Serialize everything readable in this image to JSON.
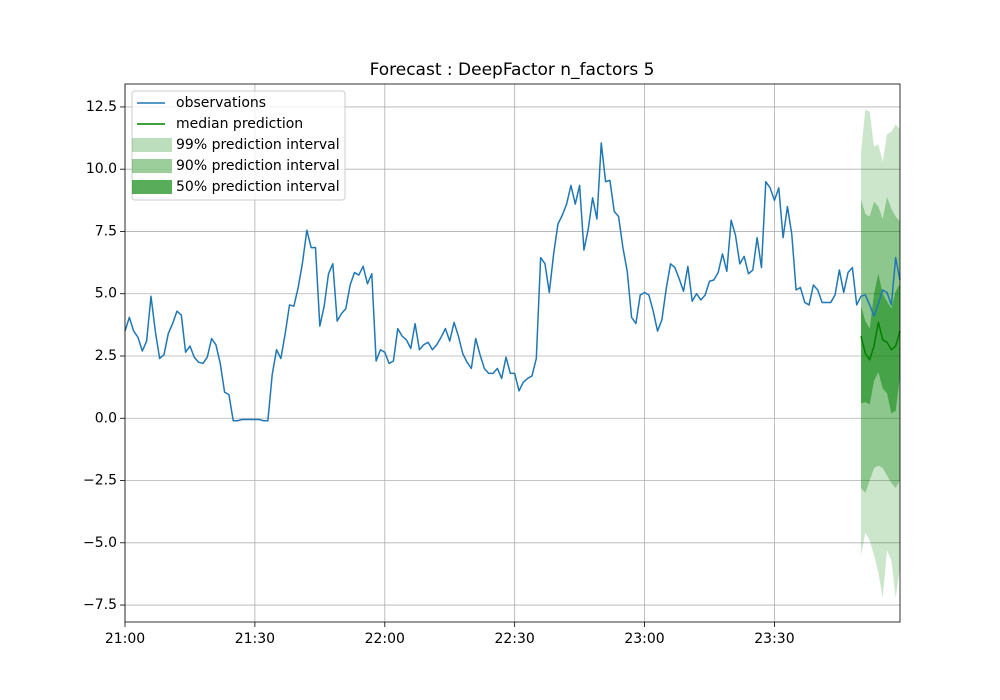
{
  "chart_data": {
    "type": "forecast",
    "title": "Forecast : DeepFactor n_factors 5",
    "xlim": [
      "21:00",
      "23:59"
    ],
    "xticks": [
      "21:00",
      "21:30",
      "22:00",
      "22:30",
      "23:00",
      "23:30"
    ],
    "ylim": [
      -8.18,
      13.42
    ],
    "yticks": [
      {
        "value": -7.5,
        "label": "−7.5"
      },
      {
        "value": -5,
        "label": "−5.0"
      },
      {
        "value": -2.5,
        "label": "−2.5"
      },
      {
        "value": 0,
        "label": "0.0"
      },
      2.5,
      {
        "value": 5,
        "label": "5.0"
      },
      7.5,
      {
        "value": 10,
        "label": "10.0"
      },
      12.5
    ],
    "grid": true,
    "legend": "upper left",
    "series": [
      {
        "name": "observations",
        "color": "#1f77b4",
        "x": [
          "21:00",
          "21:01",
          "21:02",
          "21:03",
          "21:04",
          "21:05",
          "21:06",
          "21:07",
          "21:08",
          "21:09",
          "21:10",
          "21:11",
          "21:12",
          "21:13",
          "21:14",
          "21:15",
          "21:16",
          "21:17",
          "21:18",
          "21:19",
          "21:20",
          "21:21",
          "21:22",
          "21:23",
          "21:24",
          "21:25",
          "21:26",
          "21:27",
          "21:28",
          "21:29",
          "21:30",
          "21:31",
          "21:32",
          "21:33",
          "21:34",
          "21:35",
          "21:36",
          "21:37",
          "21:38",
          "21:39",
          "21:40",
          "21:41",
          "21:42",
          "21:43",
          "21:44",
          "21:45",
          "21:46",
          "21:47",
          "21:48",
          "21:49",
          "21:50",
          "21:51",
          "21:52",
          "21:53",
          "21:54",
          "21:55",
          "21:56",
          "21:57",
          "21:58",
          "21:59",
          "22:00",
          "22:01",
          "22:02",
          "22:03",
          "22:04",
          "22:05",
          "22:06",
          "22:07",
          "22:08",
          "22:09",
          "22:10",
          "22:11",
          "22:12",
          "22:13",
          "22:14",
          "22:15",
          "22:16",
          "22:17",
          "22:18",
          "22:19",
          "22:20",
          "22:21",
          "22:22",
          "22:23",
          "22:24",
          "22:25",
          "22:26",
          "22:27",
          "22:28",
          "22:29",
          "22:30",
          "22:31",
          "22:32",
          "22:33",
          "22:34",
          "22:35",
          "22:36",
          "22:37",
          "22:38",
          "22:39",
          "22:40",
          "22:41",
          "22:42",
          "22:43",
          "22:44",
          "22:45",
          "22:46",
          "22:47",
          "22:48",
          "22:49",
          "22:50",
          "22:51",
          "22:52",
          "22:53",
          "22:54",
          "22:55",
          "22:56",
          "22:57",
          "22:58",
          "22:59",
          "23:00",
          "23:01",
          "23:02",
          "23:03",
          "23:04",
          "23:05",
          "23:06",
          "23:07",
          "23:08",
          "23:09",
          "23:10",
          "23:11",
          "23:12",
          "23:13",
          "23:14",
          "23:15",
          "23:16",
          "23:17",
          "23:18",
          "23:19",
          "23:20",
          "23:21",
          "23:22",
          "23:23",
          "23:24",
          "23:25",
          "23:26",
          "23:27",
          "23:28",
          "23:29",
          "23:30",
          "23:31",
          "23:32",
          "23:33",
          "23:34",
          "23:35",
          "23:36",
          "23:37",
          "23:38",
          "23:39",
          "23:40",
          "23:41",
          "23:42",
          "23:43",
          "23:44",
          "23:45",
          "23:46",
          "23:47",
          "23:48",
          "23:49",
          "23:50",
          "23:51",
          "23:52",
          "23:53",
          "23:54",
          "23:55",
          "23:56",
          "23:57",
          "23:58",
          "23:59"
        ],
        "values": [
          3.5,
          4.05,
          3.5,
          3.25,
          2.7,
          3.1,
          4.9,
          3.5,
          2.4,
          2.55,
          3.4,
          3.8,
          4.3,
          4.15,
          2.65,
          2.9,
          2.45,
          2.25,
          2.2,
          2.45,
          3.2,
          2.95,
          2.2,
          1.05,
          0.95,
          -0.1,
          -0.1,
          -0.05,
          -0.05,
          -0.05,
          -0.05,
          -0.05,
          -0.1,
          -0.1,
          1.75,
          2.75,
          2.4,
          3.4,
          4.55,
          4.5,
          5.25,
          6.25,
          7.55,
          6.85,
          6.85,
          3.7,
          4.5,
          5.8,
          6.2,
          3.9,
          4.2,
          4.4,
          5.35,
          5.85,
          5.75,
          6.1,
          5.4,
          5.8,
          2.3,
          2.75,
          2.65,
          2.2,
          2.3,
          3.6,
          3.3,
          3.15,
          2.8,
          3.8,
          2.75,
          2.95,
          3.05,
          2.75,
          2.95,
          3.25,
          3.6,
          3.1,
          3.85,
          3.3,
          2.6,
          2.25,
          2.0,
          3.2,
          2.55,
          2.0,
          1.8,
          1.8,
          2.0,
          1.6,
          2.45,
          1.8,
          1.8,
          1.1,
          1.45,
          1.6,
          1.7,
          2.4,
          6.45,
          6.2,
          5.05,
          6.6,
          7.8,
          8.15,
          8.6,
          9.35,
          8.6,
          9.35,
          6.75,
          7.6,
          8.85,
          8.0,
          11.05,
          9.5,
          9.55,
          8.3,
          8.1,
          6.85,
          5.9,
          4.05,
          3.8,
          4.95,
          5.05,
          4.95,
          4.3,
          3.5,
          3.95,
          5.2,
          6.2,
          6.05,
          5.6,
          5.1,
          6.1,
          4.7,
          5.0,
          4.75,
          4.95,
          5.5,
          5.55,
          5.85,
          6.6,
          5.9,
          7.95,
          7.35,
          6.2,
          6.5,
          5.8,
          5.95,
          7.25,
          6.05,
          9.5,
          9.25,
          8.75,
          9.25,
          7.25,
          8.5,
          7.4,
          5.15,
          5.25,
          4.65,
          4.55,
          5.35,
          5.15,
          4.65,
          4.65,
          4.65,
          4.95,
          5.95,
          5.05,
          5.85,
          6.05,
          4.55,
          4.9,
          4.95,
          4.55,
          4.1,
          4.6,
          5.15,
          5.05,
          4.55,
          6.45,
          5.55
        ]
      },
      {
        "name": "median prediction",
        "color": "#008000",
        "x": [
          "23:50",
          "23:51",
          "23:52",
          "23:53",
          "23:54",
          "23:55",
          "23:56",
          "23:57",
          "23:58",
          "23:59"
        ],
        "values": [
          3.3,
          2.6,
          2.35,
          2.9,
          3.85,
          3.15,
          3.05,
          2.75,
          2.9,
          3.5
        ]
      }
    ],
    "intervals": [
      {
        "name": "99% prediction interval",
        "color": "#008000",
        "opacity": 0.2,
        "x": [
          "23:50",
          "23:51",
          "23:52",
          "23:53",
          "23:54",
          "23:55",
          "23:56",
          "23:57",
          "23:58",
          "23:59"
        ],
        "upper": [
          10.7,
          12.4,
          12.3,
          10.9,
          11.0,
          10.3,
          11.4,
          11.5,
          11.8,
          11.6
        ],
        "lower": [
          -5.5,
          -4.6,
          -4.9,
          -5.5,
          -6.2,
          -7.2,
          -5.3,
          -5.7,
          -7.2,
          -6.0
        ]
      },
      {
        "name": "90% prediction interval",
        "color": "#008000",
        "opacity": 0.3,
        "x": [
          "23:50",
          "23:51",
          "23:52",
          "23:53",
          "23:54",
          "23:55",
          "23:56",
          "23:57",
          "23:58",
          "23:59"
        ],
        "upper": [
          8.8,
          8.2,
          8.1,
          8.7,
          8.5,
          8.0,
          8.9,
          8.4,
          8.1,
          7.9
        ],
        "lower": [
          -2.8,
          -3.0,
          -2.5,
          -2.0,
          -1.9,
          -2.0,
          -2.3,
          -2.6,
          -2.8,
          -2.5
        ]
      },
      {
        "name": "50% prediction interval",
        "color": "#008000",
        "opacity": 0.5,
        "x": [
          "23:50",
          "23:51",
          "23:52",
          "23:53",
          "23:54",
          "23:55",
          "23:56",
          "23:57",
          "23:58",
          "23:59"
        ],
        "upper": [
          4.5,
          3.9,
          3.6,
          5.0,
          5.8,
          5.0,
          4.7,
          4.4,
          5.1,
          5.4
        ],
        "lower": [
          0.6,
          0.65,
          0.55,
          1.5,
          1.85,
          1.2,
          1.0,
          0.2,
          0.3,
          1.7
        ]
      }
    ]
  }
}
